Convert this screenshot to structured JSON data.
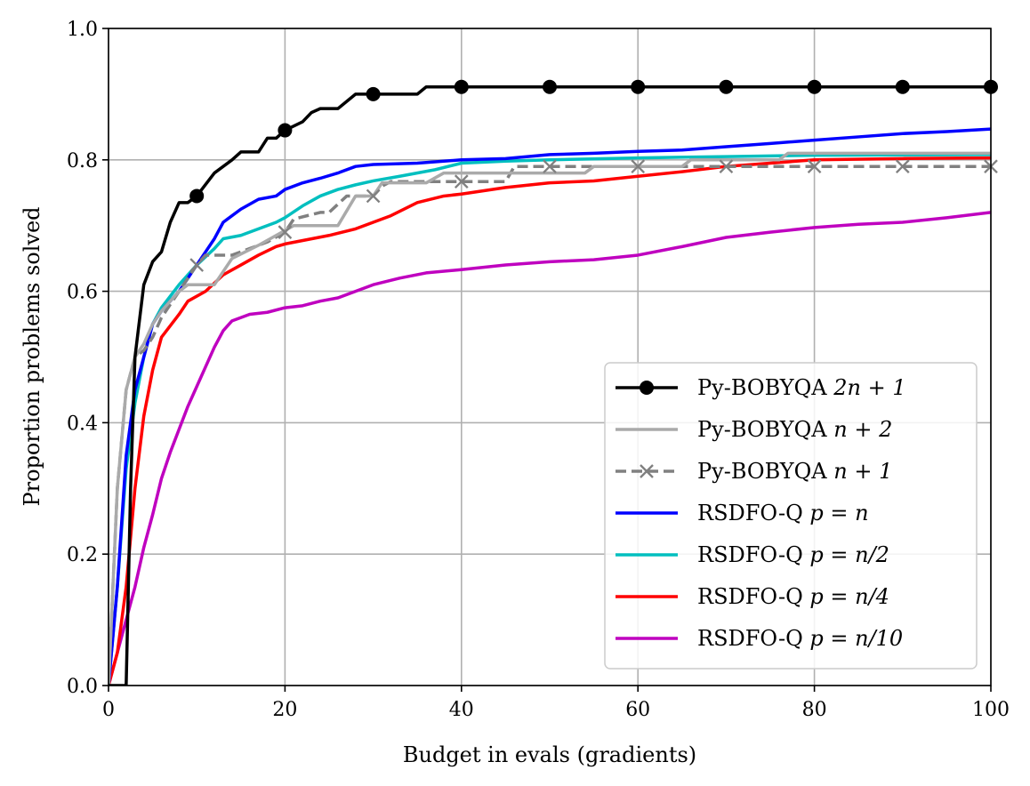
{
  "chart_data": {
    "type": "line",
    "title": "",
    "xlabel": "Budget in evals (gradients)",
    "ylabel": "Proportion problems solved",
    "xlim": [
      0,
      100
    ],
    "ylim": [
      0,
      1
    ],
    "grid": true,
    "legend_position": "lower-right",
    "x_ticks": [
      0,
      20,
      40,
      60,
      80,
      100
    ],
    "y_ticks": [
      0.0,
      0.2,
      0.4,
      0.6,
      0.8,
      1.0
    ],
    "x_tick_labels": [
      "0",
      "20",
      "40",
      "60",
      "80",
      "100"
    ],
    "y_tick_labels": [
      "0.0",
      "0.2",
      "0.4",
      "0.6",
      "0.8",
      "1.0"
    ],
    "series": [
      {
        "name": "Py-BOBYQA 2n + 1",
        "label_main": "Py-BOBYQA ",
        "label_math": "2n + 1",
        "color": "#000000",
        "dash": "",
        "marker": "circle",
        "marker_x": [
          10,
          20,
          30,
          40,
          50,
          60,
          70,
          80,
          90,
          100
        ],
        "points": [
          [
            0,
            0
          ],
          [
            2,
            0
          ],
          [
            2.5,
            0.3
          ],
          [
            3,
            0.5
          ],
          [
            4,
            0.61
          ],
          [
            5,
            0.645
          ],
          [
            6,
            0.66
          ],
          [
            7,
            0.705
          ],
          [
            8,
            0.735
          ],
          [
            9,
            0.735
          ],
          [
            10,
            0.745
          ],
          [
            12,
            0.78
          ],
          [
            14,
            0.8
          ],
          [
            15,
            0.812
          ],
          [
            17,
            0.812
          ],
          [
            18,
            0.833
          ],
          [
            19,
            0.833
          ],
          [
            20,
            0.845
          ],
          [
            22,
            0.858
          ],
          [
            23,
            0.872
          ],
          [
            24,
            0.878
          ],
          [
            26,
            0.878
          ],
          [
            28,
            0.9
          ],
          [
            30,
            0.9
          ],
          [
            31,
            0.9
          ],
          [
            35,
            0.9
          ],
          [
            36,
            0.911
          ],
          [
            40,
            0.911
          ],
          [
            100,
            0.911
          ]
        ]
      },
      {
        "name": "Py-BOBYQA n + 2",
        "label_main": "Py-BOBYQA ",
        "label_math": "n + 2",
        "color": "#aaaaaa",
        "dash": "",
        "marker": "",
        "marker_x": [],
        "points": [
          [
            0,
            0
          ],
          [
            1,
            0.3
          ],
          [
            2,
            0.45
          ],
          [
            3,
            0.5
          ],
          [
            4,
            0.52
          ],
          [
            5,
            0.55
          ],
          [
            6,
            0.57
          ],
          [
            8,
            0.6
          ],
          [
            9,
            0.61
          ],
          [
            12,
            0.61
          ],
          [
            14,
            0.65
          ],
          [
            17,
            0.67
          ],
          [
            19,
            0.685
          ],
          [
            21,
            0.7
          ],
          [
            26,
            0.7
          ],
          [
            28,
            0.745
          ],
          [
            30,
            0.745
          ],
          [
            31,
            0.765
          ],
          [
            36,
            0.765
          ],
          [
            38,
            0.78
          ],
          [
            54,
            0.78
          ],
          [
            55,
            0.79
          ],
          [
            65,
            0.79
          ],
          [
            66,
            0.8
          ],
          [
            76,
            0.8
          ],
          [
            77,
            0.81
          ],
          [
            100,
            0.81
          ]
        ]
      },
      {
        "name": "Py-BOBYQA n + 1",
        "label_main": "Py-BOBYQA ",
        "label_math": "n + 1",
        "color": "#808080",
        "dash": "12,6",
        "marker": "x",
        "marker_x": [
          10,
          20,
          30,
          40,
          50,
          60,
          70,
          80,
          90,
          100
        ],
        "points": [
          [
            0,
            0
          ],
          [
            1,
            0.3
          ],
          [
            2,
            0.45
          ],
          [
            3,
            0.5
          ],
          [
            4,
            0.51
          ],
          [
            5,
            0.53
          ],
          [
            6,
            0.56
          ],
          [
            7,
            0.58
          ],
          [
            8,
            0.6
          ],
          [
            9,
            0.62
          ],
          [
            10,
            0.64
          ],
          [
            11,
            0.655
          ],
          [
            14,
            0.655
          ],
          [
            16,
            0.665
          ],
          [
            18,
            0.675
          ],
          [
            20,
            0.69
          ],
          [
            21,
            0.71
          ],
          [
            24,
            0.72
          ],
          [
            25,
            0.72
          ],
          [
            27,
            0.745
          ],
          [
            29,
            0.745
          ],
          [
            30,
            0.745
          ],
          [
            31,
            0.76
          ],
          [
            32,
            0.767
          ],
          [
            40,
            0.767
          ],
          [
            45,
            0.767
          ],
          [
            46,
            0.79
          ],
          [
            100,
            0.79
          ]
        ]
      },
      {
        "name": "RSDFO-Q p = n",
        "label_main": "RSDFO-Q ",
        "label_math": "p = n",
        "color": "#0000ff",
        "dash": "",
        "marker": "",
        "marker_x": [],
        "points": [
          [
            0,
            0
          ],
          [
            1,
            0.15
          ],
          [
            2,
            0.35
          ],
          [
            3,
            0.45
          ],
          [
            4,
            0.5
          ],
          [
            5,
            0.55
          ],
          [
            6,
            0.57
          ],
          [
            8,
            0.6
          ],
          [
            10,
            0.64
          ],
          [
            12,
            0.68
          ],
          [
            13,
            0.705
          ],
          [
            15,
            0.725
          ],
          [
            17,
            0.74
          ],
          [
            19,
            0.745
          ],
          [
            20,
            0.755
          ],
          [
            22,
            0.765
          ],
          [
            24,
            0.772
          ],
          [
            26,
            0.78
          ],
          [
            28,
            0.79
          ],
          [
            30,
            0.793
          ],
          [
            35,
            0.795
          ],
          [
            40,
            0.8
          ],
          [
            45,
            0.802
          ],
          [
            50,
            0.808
          ],
          [
            55,
            0.81
          ],
          [
            60,
            0.813
          ],
          [
            65,
            0.815
          ],
          [
            70,
            0.82
          ],
          [
            75,
            0.825
          ],
          [
            80,
            0.83
          ],
          [
            85,
            0.835
          ],
          [
            90,
            0.84
          ],
          [
            95,
            0.843
          ],
          [
            100,
            0.847
          ]
        ]
      },
      {
        "name": "RSDFO-Q p = n/2",
        "label_main": "RSDFO-Q ",
        "label_math": "p = n/2",
        "color": "#00bfbf",
        "dash": "",
        "marker": "",
        "marker_x": [],
        "points": [
          [
            0,
            0
          ],
          [
            1,
            0.15
          ],
          [
            2,
            0.33
          ],
          [
            3,
            0.43
          ],
          [
            4,
            0.5
          ],
          [
            5,
            0.55
          ],
          [
            6,
            0.575
          ],
          [
            8,
            0.61
          ],
          [
            10,
            0.64
          ],
          [
            12,
            0.665
          ],
          [
            13,
            0.68
          ],
          [
            15,
            0.685
          ],
          [
            17,
            0.695
          ],
          [
            19,
            0.705
          ],
          [
            20,
            0.712
          ],
          [
            22,
            0.73
          ],
          [
            24,
            0.745
          ],
          [
            26,
            0.755
          ],
          [
            28,
            0.762
          ],
          [
            30,
            0.768
          ],
          [
            33,
            0.775
          ],
          [
            37,
            0.785
          ],
          [
            40,
            0.795
          ],
          [
            45,
            0.798
          ],
          [
            50,
            0.8
          ],
          [
            60,
            0.803
          ],
          [
            70,
            0.805
          ],
          [
            80,
            0.807
          ],
          [
            100,
            0.808
          ]
        ]
      },
      {
        "name": "RSDFO-Q p = n/4",
        "label_main": "RSDFO-Q ",
        "label_math": "p = n/4",
        "color": "#ff0000",
        "dash": "",
        "marker": "",
        "marker_x": [],
        "points": [
          [
            0,
            0
          ],
          [
            1,
            0.05
          ],
          [
            2,
            0.15
          ],
          [
            3,
            0.3
          ],
          [
            4,
            0.41
          ],
          [
            5,
            0.48
          ],
          [
            6,
            0.53
          ],
          [
            8,
            0.565
          ],
          [
            9,
            0.585
          ],
          [
            11,
            0.6
          ],
          [
            13,
            0.625
          ],
          [
            15,
            0.64
          ],
          [
            17,
            0.655
          ],
          [
            19,
            0.668
          ],
          [
            20,
            0.672
          ],
          [
            25,
            0.685
          ],
          [
            28,
            0.695
          ],
          [
            30,
            0.705
          ],
          [
            32,
            0.715
          ],
          [
            35,
            0.735
          ],
          [
            38,
            0.745
          ],
          [
            40,
            0.748
          ],
          [
            45,
            0.758
          ],
          [
            50,
            0.765
          ],
          [
            55,
            0.768
          ],
          [
            60,
            0.775
          ],
          [
            65,
            0.782
          ],
          [
            70,
            0.79
          ],
          [
            75,
            0.795
          ],
          [
            80,
            0.8
          ],
          [
            90,
            0.802
          ],
          [
            100,
            0.803
          ]
        ]
      },
      {
        "name": "RSDFO-Q p = n/10",
        "label_main": "RSDFO-Q ",
        "label_math": "p = n/10",
        "color": "#bf00bf",
        "dash": "",
        "marker": "",
        "marker_x": [],
        "points": [
          [
            0,
            0
          ],
          [
            1,
            0.05
          ],
          [
            2,
            0.1
          ],
          [
            3,
            0.15
          ],
          [
            4,
            0.21
          ],
          [
            5,
            0.26
          ],
          [
            6,
            0.315
          ],
          [
            7,
            0.355
          ],
          [
            8,
            0.39
          ],
          [
            9,
            0.425
          ],
          [
            10,
            0.455
          ],
          [
            11,
            0.485
          ],
          [
            12,
            0.515
          ],
          [
            13,
            0.54
          ],
          [
            14,
            0.555
          ],
          [
            16,
            0.565
          ],
          [
            18,
            0.568
          ],
          [
            20,
            0.575
          ],
          [
            22,
            0.578
          ],
          [
            24,
            0.585
          ],
          [
            26,
            0.59
          ],
          [
            28,
            0.6
          ],
          [
            30,
            0.61
          ],
          [
            33,
            0.62
          ],
          [
            36,
            0.628
          ],
          [
            40,
            0.633
          ],
          [
            45,
            0.64
          ],
          [
            50,
            0.645
          ],
          [
            55,
            0.648
          ],
          [
            60,
            0.655
          ],
          [
            65,
            0.668
          ],
          [
            70,
            0.682
          ],
          [
            75,
            0.69
          ],
          [
            80,
            0.697
          ],
          [
            85,
            0.702
          ],
          [
            90,
            0.705
          ],
          [
            95,
            0.712
          ],
          [
            100,
            0.72
          ]
        ]
      }
    ]
  }
}
